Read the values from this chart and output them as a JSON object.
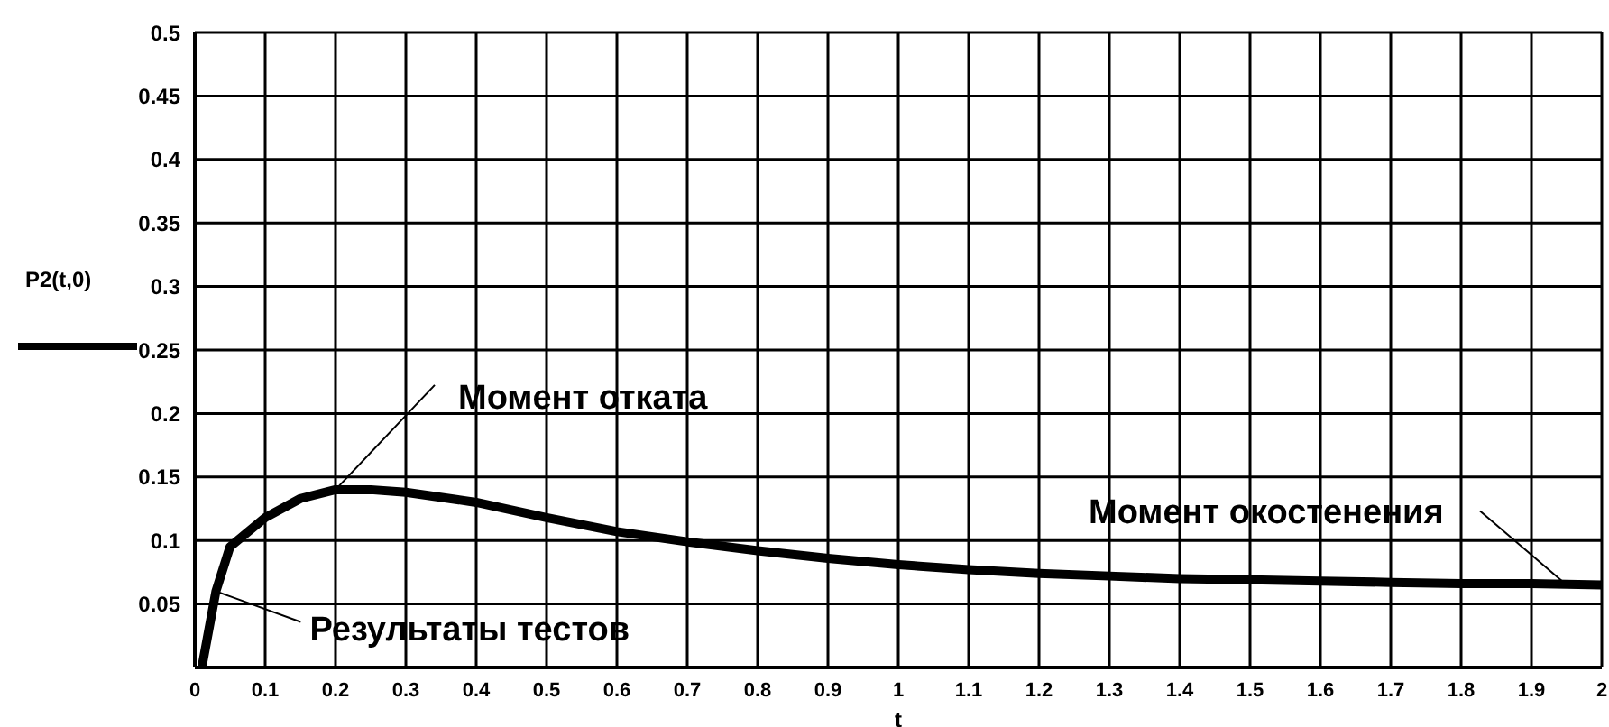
{
  "chart_data": {
    "type": "line",
    "xlabel": "t",
    "x": [
      0.01,
      0.03,
      0.05,
      0.1,
      0.15,
      0.2,
      0.25,
      0.3,
      0.4,
      0.5,
      0.6,
      0.7,
      0.8,
      0.9,
      1.0,
      1.1,
      1.2,
      1.3,
      1.4,
      1.5,
      1.6,
      1.7,
      1.8,
      1.9,
      2.0
    ],
    "series": [
      {
        "name": "P2(t,0)",
        "color": "#000000",
        "values": [
          0.0,
          0.06,
          0.095,
          0.118,
          0.133,
          0.14,
          0.14,
          0.138,
          0.13,
          0.118,
          0.107,
          0.099,
          0.092,
          0.086,
          0.081,
          0.077,
          0.074,
          0.072,
          0.07,
          0.069,
          0.068,
          0.067,
          0.066,
          0.066,
          0.065
        ]
      }
    ],
    "xlim": [
      0,
      2
    ],
    "xticks": [
      0,
      0.1,
      0.2,
      0.3,
      0.4,
      0.5,
      0.6,
      0.7,
      0.8,
      0.9,
      1,
      1.1,
      1.2,
      1.3,
      1.4,
      1.5,
      1.6,
      1.7,
      1.8,
      1.9,
      2
    ],
    "ylim": [
      0,
      0.5
    ],
    "yticks": [
      {
        "value": 0,
        "label": null
      },
      0.05,
      0.1,
      0.15,
      0.2,
      0.25,
      0.3,
      0.35,
      0.4,
      0.45,
      0.5
    ],
    "grid": true,
    "legend": "left",
    "marker": "none",
    "line_style": "solid",
    "annotations": [
      {
        "text": "Момент отката",
        "x": 0.2,
        "y": 0.14
      },
      {
        "text": "Результаты тестов",
        "x": 0.03,
        "y": 0.06
      },
      {
        "text": "Момент окостенения",
        "x": 1.95,
        "y": 0.065
      }
    ]
  }
}
